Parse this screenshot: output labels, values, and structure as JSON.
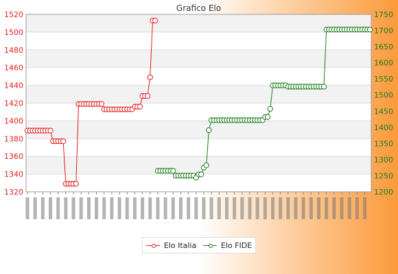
{
  "chart_data": {
    "type": "line",
    "title": "Grafico Elo",
    "xlabel": "",
    "ylabel": "",
    "left_axis": {
      "ylim": [
        1320,
        1520
      ],
      "ticks": [
        1320,
        1340,
        1360,
        1380,
        1400,
        1420,
        1440,
        1460,
        1480,
        1500,
        1520
      ],
      "color": "#e41a1c"
    },
    "right_axis": {
      "ylim": [
        1200,
        1750
      ],
      "ticks": [
        1200,
        1250,
        1300,
        1350,
        1400,
        1450,
        1500,
        1550,
        1600,
        1650,
        1700,
        1750
      ],
      "color": "#1a7a1a"
    },
    "grid": "horizontal bands",
    "legend_position": "bottom",
    "series": [
      {
        "name": "Elo Italia",
        "axis": "left",
        "color": "#e41a1c",
        "values": [
          1389,
          1389,
          1389,
          1389,
          1389,
          1389,
          1389,
          1389,
          1389,
          1389,
          1377,
          1377,
          1377,
          1377,
          1377,
          1329,
          1329,
          1329,
          1329,
          1329,
          1419,
          1419,
          1419,
          1419,
          1419,
          1419,
          1419,
          1419,
          1419,
          1419,
          1413,
          1413,
          1413,
          1413,
          1413,
          1413,
          1413,
          1413,
          1413,
          1413,
          1413,
          1413,
          1416,
          1416,
          1416,
          1428,
          1428,
          1428,
          1449,
          1513,
          1513
        ]
      },
      {
        "name": "Elo FIDE",
        "axis": "right",
        "color": "#1a7a1a",
        "values": [
          null,
          null,
          null,
          null,
          null,
          null,
          null,
          null,
          null,
          null,
          null,
          null,
          null,
          null,
          null,
          null,
          null,
          null,
          null,
          null,
          null,
          null,
          null,
          null,
          null,
          null,
          null,
          null,
          null,
          null,
          null,
          null,
          null,
          null,
          null,
          null,
          null,
          null,
          null,
          null,
          null,
          null,
          null,
          null,
          null,
          null,
          null,
          null,
          null,
          null,
          null,
          1265,
          1265,
          1265,
          1265,
          1265,
          1265,
          1265,
          1250,
          1250,
          1250,
          1250,
          1250,
          1250,
          1250,
          1250,
          1244,
          1254,
          1254,
          1275,
          1282,
          1391,
          1422,
          1422,
          1422,
          1422,
          1422,
          1422,
          1422,
          1422,
          1422,
          1422,
          1422,
          1422,
          1422,
          1422,
          1422,
          1422,
          1422,
          1422,
          1422,
          1422,
          1422,
          1432,
          1432,
          1457,
          1530,
          1530,
          1530,
          1530,
          1530,
          1530,
          1526,
          1526,
          1526,
          1526,
          1526,
          1526,
          1526,
          1526,
          1526,
          1526,
          1526,
          1526,
          1526,
          1526,
          1526,
          1703,
          1703,
          1703,
          1703,
          1703,
          1703,
          1703,
          1703,
          1703,
          1703,
          1703,
          1703,
          1703,
          1703,
          1703,
          1703,
          1703,
          1703
        ]
      }
    ]
  }
}
